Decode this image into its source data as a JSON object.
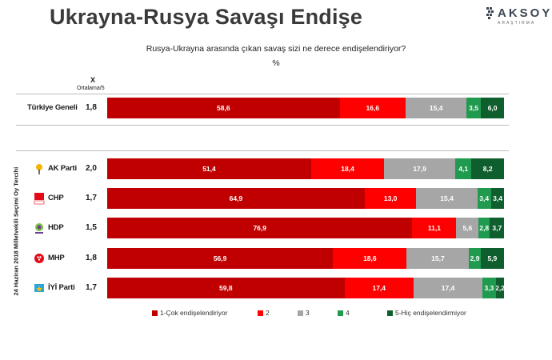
{
  "title": "Ukrayna-Rusya Savaşı Endişe",
  "brand": {
    "name": "AKSOY",
    "sub": "ARAŞTIRMA"
  },
  "question": "Rusya-Ukrayna arasında çıkan savaş sizi ne derece endişelendiriyor?",
  "unit_label": "%",
  "header": {
    "x_label": "X",
    "avg_label": "Ortalama/5"
  },
  "group_label": "24 Haziran 2018 Milletvekili Seçimi Oy Tercihi",
  "colors": {
    "c1": "#c00000",
    "c2": "#ff0000",
    "c3": "#a6a6a6",
    "c4": "#1f9a4f",
    "c5": "#0f5f2e"
  },
  "chart_data": {
    "type": "bar",
    "stacked": true,
    "orientation": "horizontal",
    "categories": [
      "Türkiye Geneli",
      "AK Parti",
      "CHP",
      "HDP",
      "MHP",
      "İYİ Parti"
    ],
    "means": [
      "1,8",
      "2,0",
      "1,7",
      "1,5",
      "1,8",
      "1,7"
    ],
    "logos": [
      "",
      "akp-logo-icon",
      "chp-logo-icon",
      "hdp-logo-icon",
      "mhp-logo-icon",
      "iyi-logo-icon"
    ],
    "series": [
      {
        "name": "1-Çok endişelendiriyor",
        "values": [
          58.6,
          51.4,
          64.9,
          76.9,
          56.9,
          59.8
        ],
        "labels": [
          "58,6",
          "51,4",
          "64,9",
          "76,9",
          "56,9",
          "59,8"
        ]
      },
      {
        "name": "2",
        "values": [
          16.6,
          18.4,
          13.0,
          11.1,
          18.6,
          17.4
        ],
        "labels": [
          "16,6",
          "18,4",
          "13,0",
          "11,1",
          "18,6",
          "17,4"
        ]
      },
      {
        "name": "3",
        "values": [
          15.4,
          17.9,
          15.4,
          5.6,
          15.7,
          17.4
        ],
        "labels": [
          "15,4",
          "17,9",
          "15,4",
          "5,6",
          "15,7",
          "17,4"
        ]
      },
      {
        "name": "4",
        "values": [
          3.5,
          4.1,
          3.4,
          2.8,
          2.9,
          3.3
        ],
        "labels": [
          "3,5",
          "4,1",
          "3,4",
          "2,8",
          "2,9",
          "3,3"
        ]
      },
      {
        "name": "5-Hiç endişelendirmiyor",
        "values": [
          6.0,
          8.2,
          3.4,
          3.7,
          5.9,
          2.2
        ],
        "labels": [
          "6,0",
          "8,2",
          "3,4",
          "3,7",
          "5,9",
          "2,2"
        ]
      }
    ],
    "xlim": [
      0,
      100
    ],
    "legend_position": "bottom"
  }
}
